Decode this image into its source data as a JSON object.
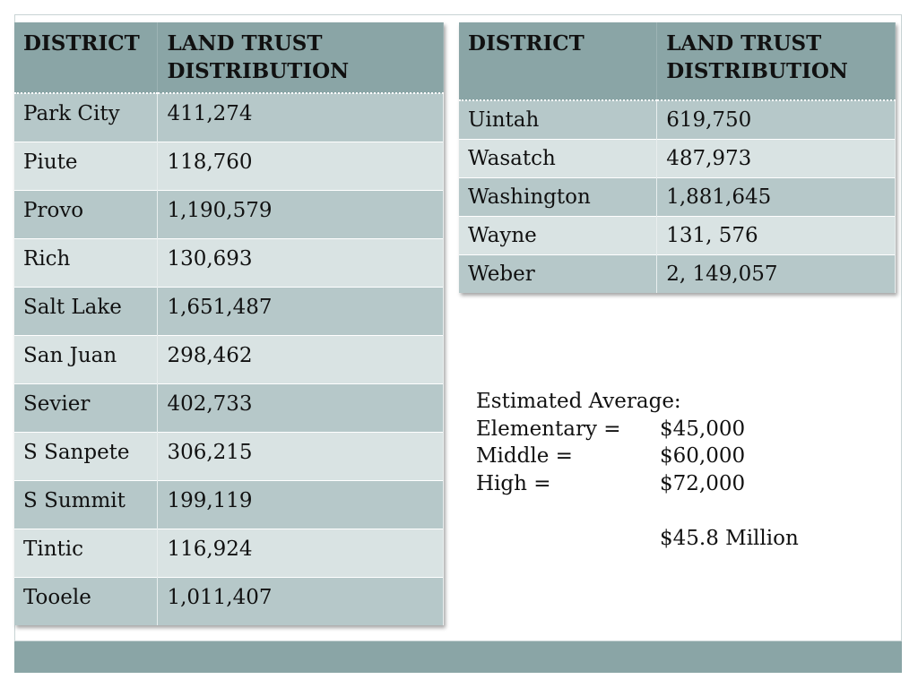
{
  "left_table": {
    "headers": [
      "DISTRICT",
      "LAND TRUST DISTRIBUTION"
    ],
    "rows": [
      [
        "Park City",
        "411,274"
      ],
      [
        "Piute",
        "118,760"
      ],
      [
        "Provo",
        "1,190,579"
      ],
      [
        "Rich",
        "130,693"
      ],
      [
        "Salt Lake",
        "1,651,487"
      ],
      [
        "San Juan",
        "298,462"
      ],
      [
        "Sevier",
        "402,733"
      ],
      [
        "S Sanpete",
        "306,215"
      ],
      [
        "S Summit",
        "199,119"
      ],
      [
        "Tintic",
        "116,924"
      ],
      [
        "Tooele",
        "1,011,407"
      ]
    ]
  },
  "right_table": {
    "headers": [
      "DISTRICT",
      "LAND TRUST DISTRIBUTION"
    ],
    "rows": [
      [
        "Uintah",
        "619,750"
      ],
      [
        "Wasatch",
        "487,973"
      ],
      [
        "Washington",
        "1,881,645"
      ],
      [
        "Wayne",
        "131, 576"
      ],
      [
        "Weber",
        "2, 149,057"
      ]
    ]
  },
  "estimate": {
    "heading": "Estimated Average:",
    "items": [
      {
        "label": "Elementary =",
        "value": "$45,000"
      },
      {
        "label": "Middle =",
        "value": "$60,000"
      },
      {
        "label": "High =",
        "value": "$72,000"
      }
    ],
    "total": "$45.8 Million"
  },
  "colors": {
    "header_bg": "#8aa5a6",
    "row_dark": "#b6c8c9",
    "row_light": "#d9e3e3",
    "footer_bar": "#8aa5a6"
  }
}
